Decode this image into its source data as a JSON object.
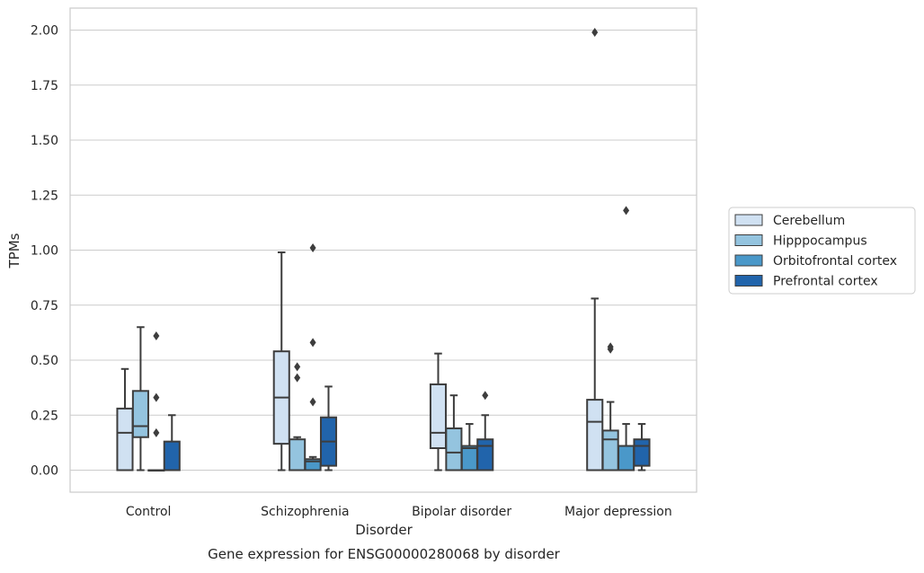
{
  "chart_data": {
    "type": "boxplot",
    "caption": "Gene expression for ENSG00000280068 by disorder",
    "xlabel": "Disorder",
    "ylabel": "TPMs",
    "ylim": [
      -0.1,
      2.1
    ],
    "yticks": [
      0.0,
      0.25,
      0.5,
      0.75,
      1.0,
      1.25,
      1.5,
      1.75,
      2.0
    ],
    "ytick_labels": [
      "0.00",
      "0.25",
      "0.50",
      "0.75",
      "1.00",
      "1.25",
      "1.50",
      "1.75",
      "2.00"
    ],
    "grid": "horizontal",
    "legend_position": "right",
    "categories": [
      "Control",
      "Schizophrenia",
      "Bipolar disorder",
      "Major depression"
    ],
    "series": [
      {
        "name": "Cerebellum",
        "color": "#d0e1f2",
        "boxes": [
          {
            "whislo": 0.0,
            "q1": 0.0,
            "med": 0.17,
            "q3": 0.28,
            "whishi": 0.46,
            "fliers": []
          },
          {
            "whislo": 0.0,
            "q1": 0.12,
            "med": 0.33,
            "q3": 0.54,
            "whishi": 0.99,
            "fliers": []
          },
          {
            "whislo": 0.0,
            "q1": 0.1,
            "med": 0.17,
            "q3": 0.39,
            "whishi": 0.53,
            "fliers": []
          },
          {
            "whislo": 0.0,
            "q1": 0.0,
            "med": 0.22,
            "q3": 0.32,
            "whishi": 0.78,
            "fliers": [
              1.99
            ]
          }
        ]
      },
      {
        "name": "Hipppocampus",
        "color": "#94c4df",
        "boxes": [
          {
            "whislo": 0.0,
            "q1": 0.15,
            "med": 0.2,
            "q3": 0.36,
            "whishi": 0.65,
            "fliers": []
          },
          {
            "whislo": 0.0,
            "q1": 0.0,
            "med": 0.0,
            "q3": 0.14,
            "whishi": 0.15,
            "fliers": [
              0.42,
              0.47
            ]
          },
          {
            "whislo": 0.0,
            "q1": 0.0,
            "med": 0.08,
            "q3": 0.19,
            "whishi": 0.34,
            "fliers": []
          },
          {
            "whislo": 0.0,
            "q1": 0.0,
            "med": 0.14,
            "q3": 0.18,
            "whishi": 0.31,
            "fliers": [
              0.55,
              0.56
            ]
          }
        ]
      },
      {
        "name": "Orbitofrontal cortex",
        "color": "#4a98c9",
        "boxes": [
          {
            "whislo": 0.0,
            "q1": 0.0,
            "med": 0.0,
            "q3": 0.0,
            "whishi": 0.0,
            "fliers": [
              0.17,
              0.33,
              0.61
            ]
          },
          {
            "whislo": 0.0,
            "q1": 0.0,
            "med": 0.04,
            "q3": 0.05,
            "whishi": 0.06,
            "fliers": [
              0.31,
              0.58,
              1.01
            ]
          },
          {
            "whislo": 0.0,
            "q1": 0.0,
            "med": 0.1,
            "q3": 0.11,
            "whishi": 0.21,
            "fliers": []
          },
          {
            "whislo": 0.0,
            "q1": 0.0,
            "med": 0.11,
            "q3": 0.11,
            "whishi": 0.21,
            "fliers": [
              1.18
            ]
          }
        ]
      },
      {
        "name": "Prefrontal cortex",
        "color": "#2164ab",
        "boxes": [
          {
            "whislo": 0.0,
            "q1": 0.0,
            "med": 0.0,
            "q3": 0.13,
            "whishi": 0.25,
            "fliers": []
          },
          {
            "whislo": 0.0,
            "q1": 0.02,
            "med": 0.13,
            "q3": 0.24,
            "whishi": 0.38,
            "fliers": []
          },
          {
            "whislo": 0.0,
            "q1": 0.0,
            "med": 0.11,
            "q3": 0.14,
            "whishi": 0.25,
            "fliers": [
              0.34
            ]
          },
          {
            "whislo": 0.0,
            "q1": 0.02,
            "med": 0.11,
            "q3": 0.14,
            "whishi": 0.21,
            "fliers": []
          }
        ]
      }
    ]
  }
}
